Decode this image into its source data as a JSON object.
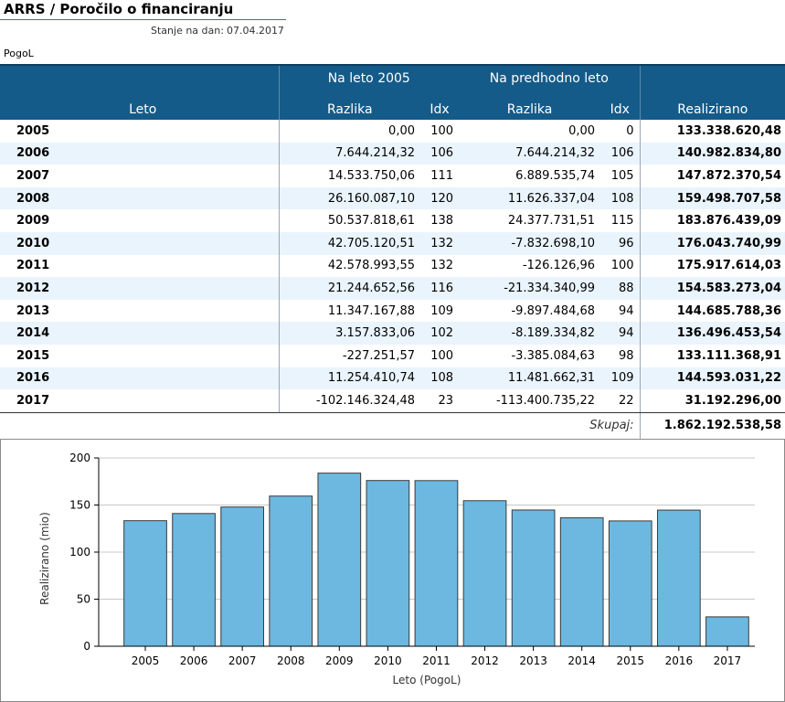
{
  "header": {
    "title": "ARRS / Poročilo o financiranju",
    "date_label": "Stanje na dan:",
    "date_value": "07.04.2017",
    "subsection": "PogoL"
  },
  "table": {
    "group_headers": {
      "vs_2005": "Na leto 2005",
      "vs_prev": "Na predhodno leto"
    },
    "columns": {
      "year": "Leto",
      "diff_2005": "Razlika",
      "idx_2005": "Idx",
      "diff_prev": "Razlika",
      "idx_prev": "Idx",
      "realized": "Realizirano"
    },
    "rows": [
      {
        "year": "2005",
        "diff_2005": "0,00",
        "idx_2005": "100",
        "diff_prev": "0,00",
        "idx_prev": "0",
        "realized": "133.338.620,48"
      },
      {
        "year": "2006",
        "diff_2005": "7.644.214,32",
        "idx_2005": "106",
        "diff_prev": "7.644.214,32",
        "idx_prev": "106",
        "realized": "140.982.834,80"
      },
      {
        "year": "2007",
        "diff_2005": "14.533.750,06",
        "idx_2005": "111",
        "diff_prev": "6.889.535,74",
        "idx_prev": "105",
        "realized": "147.872.370,54"
      },
      {
        "year": "2008",
        "diff_2005": "26.160.087,10",
        "idx_2005": "120",
        "diff_prev": "11.626.337,04",
        "idx_prev": "108",
        "realized": "159.498.707,58"
      },
      {
        "year": "2009",
        "diff_2005": "50.537.818,61",
        "idx_2005": "138",
        "diff_prev": "24.377.731,51",
        "idx_prev": "115",
        "realized": "183.876.439,09"
      },
      {
        "year": "2010",
        "diff_2005": "42.705.120,51",
        "idx_2005": "132",
        "diff_prev": "-7.832.698,10",
        "idx_prev": "96",
        "realized": "176.043.740,99"
      },
      {
        "year": "2011",
        "diff_2005": "42.578.993,55",
        "idx_2005": "132",
        "diff_prev": "-126.126,96",
        "idx_prev": "100",
        "realized": "175.917.614,03"
      },
      {
        "year": "2012",
        "diff_2005": "21.244.652,56",
        "idx_2005": "116",
        "diff_prev": "-21.334.340,99",
        "idx_prev": "88",
        "realized": "154.583.273,04"
      },
      {
        "year": "2013",
        "diff_2005": "11.347.167,88",
        "idx_2005": "109",
        "diff_prev": "-9.897.484,68",
        "idx_prev": "94",
        "realized": "144.685.788,36"
      },
      {
        "year": "2014",
        "diff_2005": "3.157.833,06",
        "idx_2005": "102",
        "diff_prev": "-8.189.334,82",
        "idx_prev": "94",
        "realized": "136.496.453,54"
      },
      {
        "year": "2015",
        "diff_2005": "-227.251,57",
        "idx_2005": "100",
        "diff_prev": "-3.385.084,63",
        "idx_prev": "98",
        "realized": "133.111.368,91"
      },
      {
        "year": "2016",
        "diff_2005": "11.254.410,74",
        "idx_2005": "108",
        "diff_prev": "11.481.662,31",
        "idx_prev": "109",
        "realized": "144.593.031,22"
      },
      {
        "year": "2017",
        "diff_2005": "-102.146.324,48",
        "idx_2005": "23",
        "diff_prev": "-113.400.735,22",
        "idx_prev": "22",
        "realized": "31.192.296,00"
      }
    ],
    "total_label": "Skupaj:",
    "total_value": "1.862.192.538,58"
  },
  "colors": {
    "header_bg": "#155b89",
    "row_alt": "#eaf4fc",
    "bar_fill": "#6cb8e0",
    "bar_stroke": "#3a3a3a"
  },
  "chart_data": {
    "type": "bar",
    "categories": [
      "2005",
      "2006",
      "2007",
      "2008",
      "2009",
      "2010",
      "2011",
      "2012",
      "2013",
      "2014",
      "2015",
      "2016",
      "2017"
    ],
    "values": [
      133.34,
      140.98,
      147.87,
      159.5,
      183.88,
      176.04,
      175.92,
      154.58,
      144.69,
      136.5,
      133.11,
      144.59,
      31.19
    ],
    "xlabel": "Leto (PogoL)",
    "ylabel": "Realizirano (mio)",
    "ylim": [
      0,
      200
    ],
    "yticks": [
      0,
      50,
      100,
      150,
      200
    ],
    "grid": true,
    "legend": "none"
  }
}
